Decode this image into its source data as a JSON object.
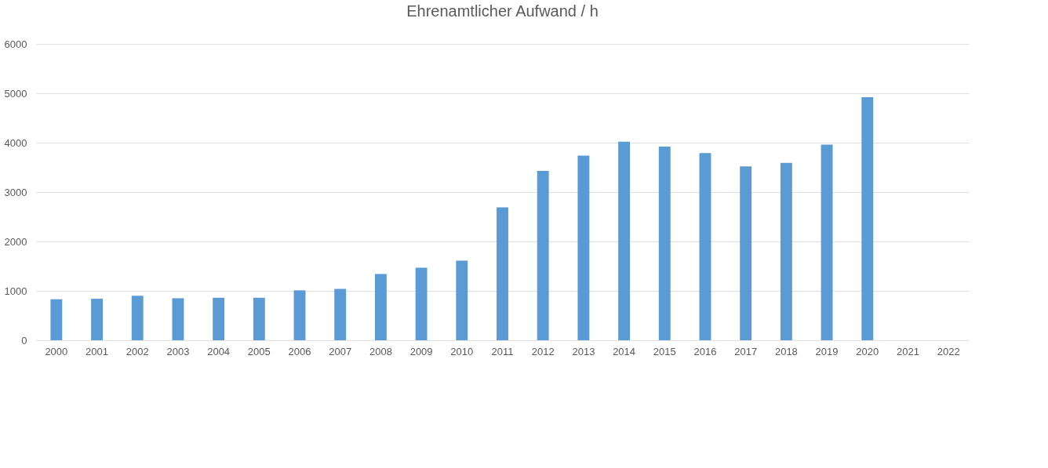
{
  "chart_data": {
    "type": "bar",
    "title": "Ehrenamtlicher Aufwand / h",
    "categories": [
      "2000",
      "2001",
      "2002",
      "2003",
      "2004",
      "2005",
      "2006",
      "2007",
      "2008",
      "2009",
      "2010",
      "2011",
      "2012",
      "2013",
      "2014",
      "2015",
      "2016",
      "2017",
      "2018",
      "2019",
      "2020",
      "2021",
      "2022"
    ],
    "values": [
      830,
      840,
      900,
      850,
      860,
      860,
      1010,
      1040,
      1340,
      1470,
      1610,
      2690,
      3430,
      3740,
      4020,
      3920,
      3790,
      3520,
      3590,
      3960,
      4920,
      null,
      null
    ],
    "color": "#5b9bd5",
    "ylim": [
      0,
      6000
    ],
    "yticks": [
      0,
      1000,
      2000,
      3000,
      4000,
      5000,
      6000
    ],
    "grid": "y"
  }
}
